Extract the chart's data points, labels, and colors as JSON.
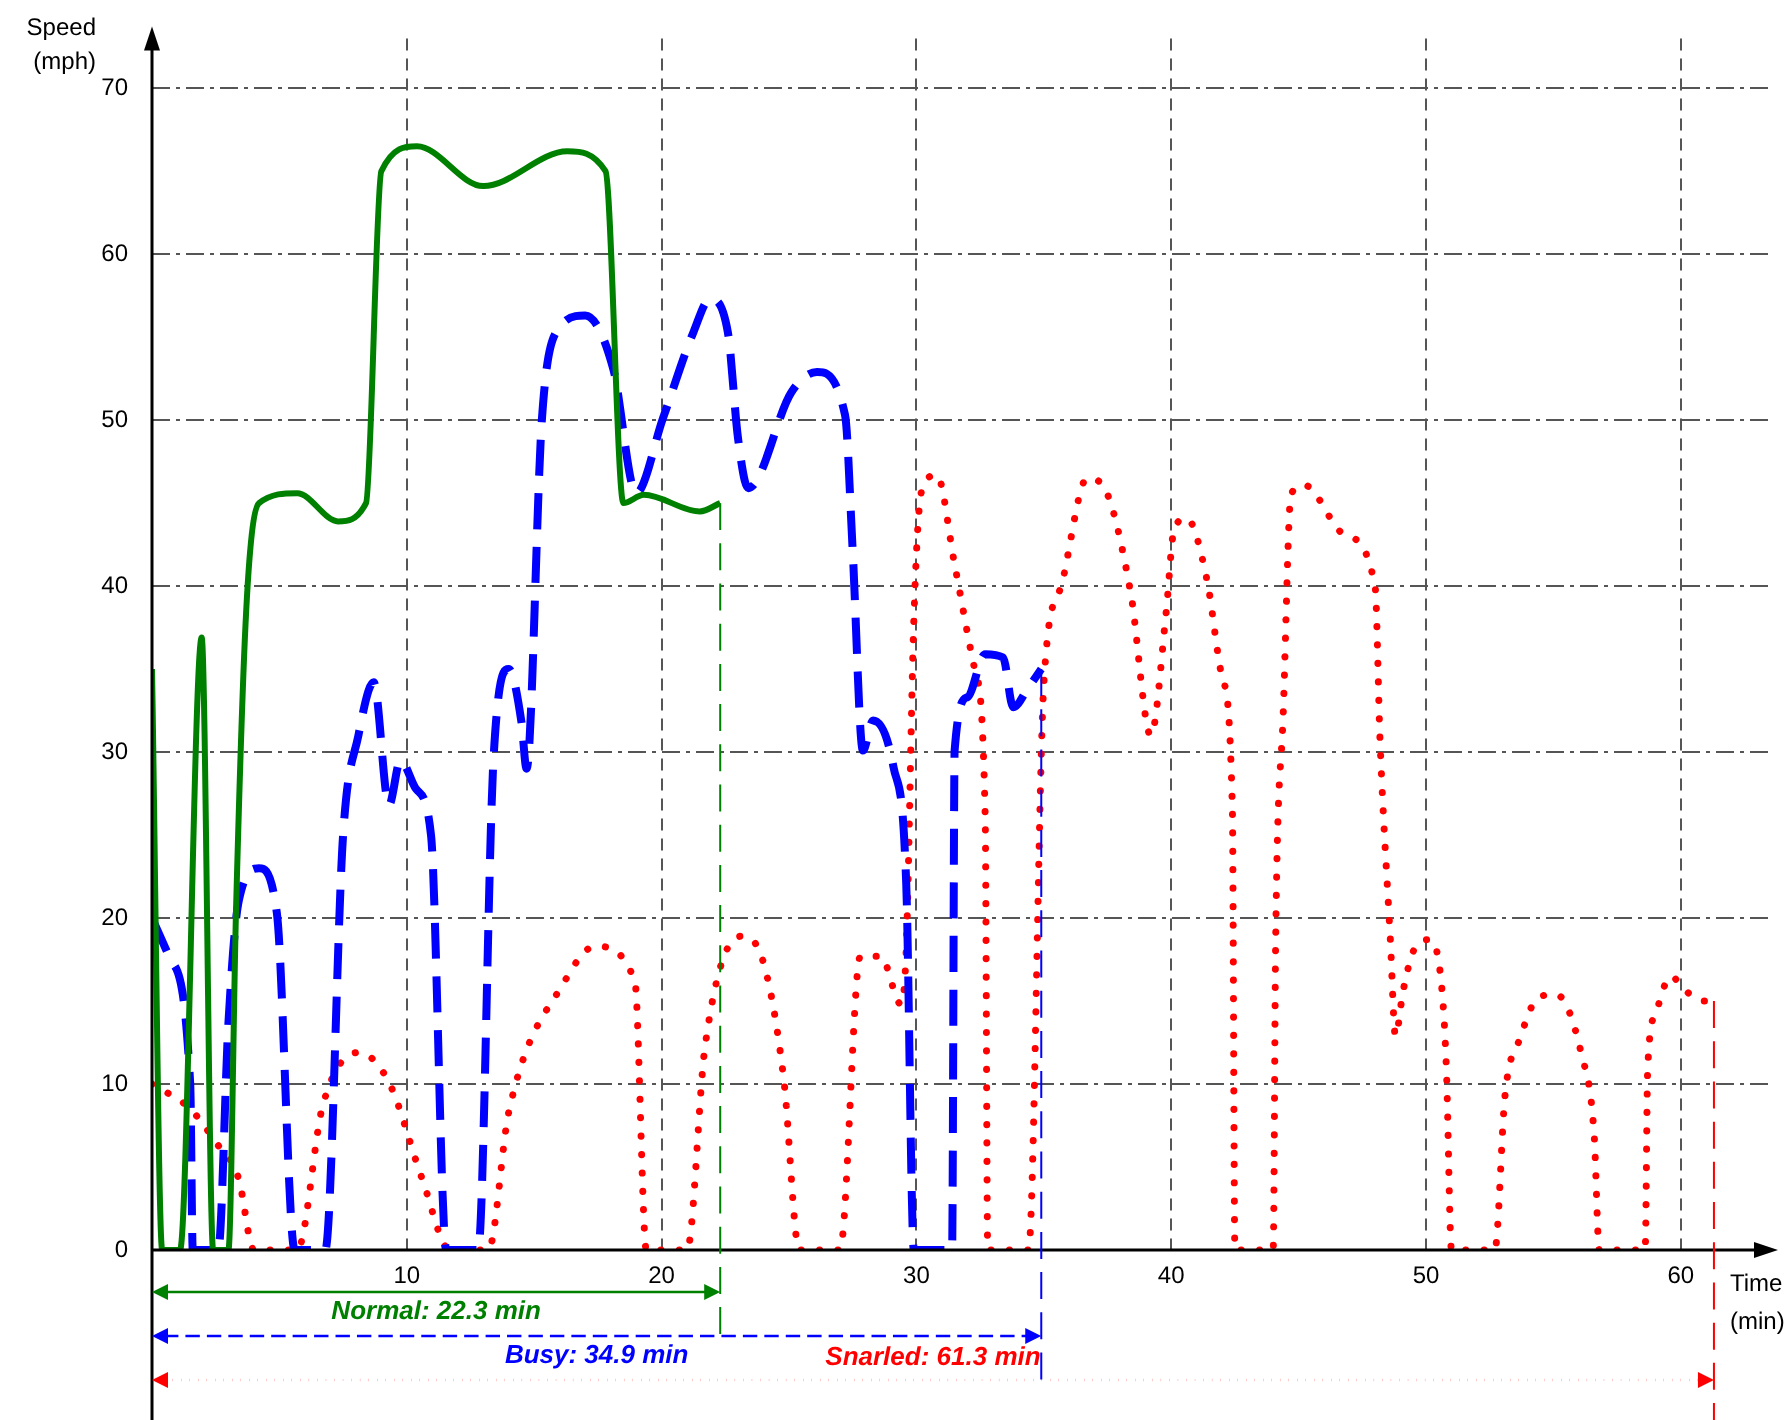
{
  "chart_data": {
    "type": "line",
    "xlabel": "Time (min)",
    "ylabel": "Speed (mph)",
    "xlim": [
      0,
      63.5
    ],
    "ylim": [
      0,
      73
    ],
    "xticks": [
      10,
      20,
      30,
      40,
      50,
      60
    ],
    "yticks": [
      0,
      10,
      20,
      30,
      40,
      50,
      60,
      70
    ],
    "grid": true,
    "legend": false,
    "marker": "none",
    "series": [
      {
        "color": "#008000",
        "line_style": "solid",
        "x": [
          0,
          0.4,
          1.1,
          1.95,
          2.4,
          3.0,
          3.3,
          3.7,
          4.2,
          5.7,
          7.3,
          8.4,
          9.0,
          10.4,
          13.0,
          16.3,
          17.8,
          18.5,
          19.3,
          21.5,
          22.3
        ],
        "values": [
          35,
          0,
          0,
          36.9,
          0,
          0,
          20.6,
          38.6,
          45,
          45.6,
          43.9,
          45,
          65,
          66.5,
          64.1,
          66.2,
          65,
          45,
          45.5,
          44.5,
          45
        ]
      },
      {
        "color": "#0000ff",
        "line_style": "dashed",
        "x": [
          0,
          0.7,
          1.5,
          1.6,
          2.6,
          3.0,
          3.4,
          4.2,
          4.9,
          5.6,
          6.8,
          7.5,
          8.1,
          8.7,
          9.3,
          9.75,
          10.35,
          10.95,
          11.55,
          12.8,
          13.4,
          14.0,
          14.5,
          14.7,
          15.3,
          15.9,
          17.0,
          18.1,
          19.0,
          20.05,
          21.25,
          21.9,
          22.6,
          23.0,
          23.4,
          25.1,
          26.1,
          27.2,
          27.5,
          27.9,
          28.3,
          29.1,
          29.6,
          29.9,
          31.4,
          31.5,
          32.0,
          32.7,
          33.4,
          33.8,
          34.4,
          34.9
        ],
        "values": [
          20,
          17.6,
          10,
          0,
          0,
          13.7,
          21,
          23,
          20.3,
          0,
          0,
          25,
          31,
          34.2,
          26.8,
          29.5,
          27.8,
          25,
          0,
          0,
          29.5,
          35,
          31.8,
          29,
          50,
          55.4,
          56.3,
          53.1,
          45.6,
          50.1,
          55.3,
          57.3,
          55.3,
          48.9,
          45.9,
          51.7,
          52.9,
          50.3,
          42.1,
          30.1,
          31.9,
          29.1,
          22.1,
          0,
          0,
          30.1,
          33.3,
          35.9,
          35.7,
          32.7,
          33.9,
          35
        ]
      },
      {
        "color": "#ff0000",
        "line_style": "dotted",
        "x": [
          0,
          1.5,
          2.5,
          3.4,
          4.0,
          5.7,
          6.7,
          8.1,
          9.3,
          10.6,
          11.7,
          13.2,
          14.0,
          16.2,
          17.4,
          18.95,
          19.4,
          21.0,
          21.7,
          23.1,
          24.0,
          24.8,
          25.4,
          27.0,
          27.8,
          28.6,
          29.4,
          29.6,
          29.9,
          30.2,
          30.8,
          31.5,
          32.3,
          32.7,
          32.8,
          34.4,
          35.0,
          35.7,
          36.7,
          37.3,
          38.4,
          39.2,
          39.8,
          40.1,
          40.6,
          41.4,
          42.0,
          42.4,
          42.5,
          44.0,
          44.1,
          44.4,
          44.7,
          45.2,
          46.8,
          48.0,
          48.2,
          48.6,
          48.8,
          49.1,
          49.5,
          50.1,
          50.6,
          50.8,
          51.0,
          52.7,
          53.1,
          53.7,
          54.4,
          55.1,
          56.1,
          56.6,
          56.8,
          58.6,
          58.7,
          59.0,
          59.6,
          60.2,
          60.9,
          61.3
        ],
        "values": [
          10,
          8.5,
          6.5,
          4.3,
          0,
          0,
          8.7,
          11.9,
          10.1,
          4.3,
          0,
          0,
          8.3,
          16.2,
          18.3,
          16.2,
          0,
          0,
          12.2,
          18.9,
          17.3,
          10.2,
          0,
          0,
          17.7,
          17.7,
          14.8,
          18.1,
          38,
          45.7,
          46.7,
          41.3,
          34.9,
          26.1,
          0,
          0,
          34.1,
          40.1,
          46.5,
          46.1,
          39.7,
          31.0,
          38.4,
          43.3,
          44.1,
          40.4,
          34.5,
          26.6,
          0,
          0,
          18.7,
          32.5,
          45.5,
          46.1,
          43.1,
          40.0,
          30.5,
          18.7,
          12.9,
          15.6,
          18.0,
          18.7,
          16.1,
          10.9,
          0,
          0,
          9.3,
          12.8,
          15.2,
          15.4,
          11.8,
          6.9,
          0,
          0,
          10.9,
          14.2,
          16.5,
          15.6,
          15.0,
          15.0
        ]
      }
    ],
    "ref_lines": [
      {
        "axis": "x",
        "value": 22.3,
        "label": "Normal: 22.3 min",
        "color": "#008000",
        "line_style": "dashed"
      },
      {
        "axis": "x",
        "value": 34.9,
        "label": "Busy: 34.9 min",
        "color": "#0000ff",
        "line_style": "dashed"
      },
      {
        "axis": "x",
        "value": 61.3,
        "label": "Snarled: 61.3 min",
        "color": "#ff0000",
        "line_style": "dashed"
      }
    ]
  }
}
